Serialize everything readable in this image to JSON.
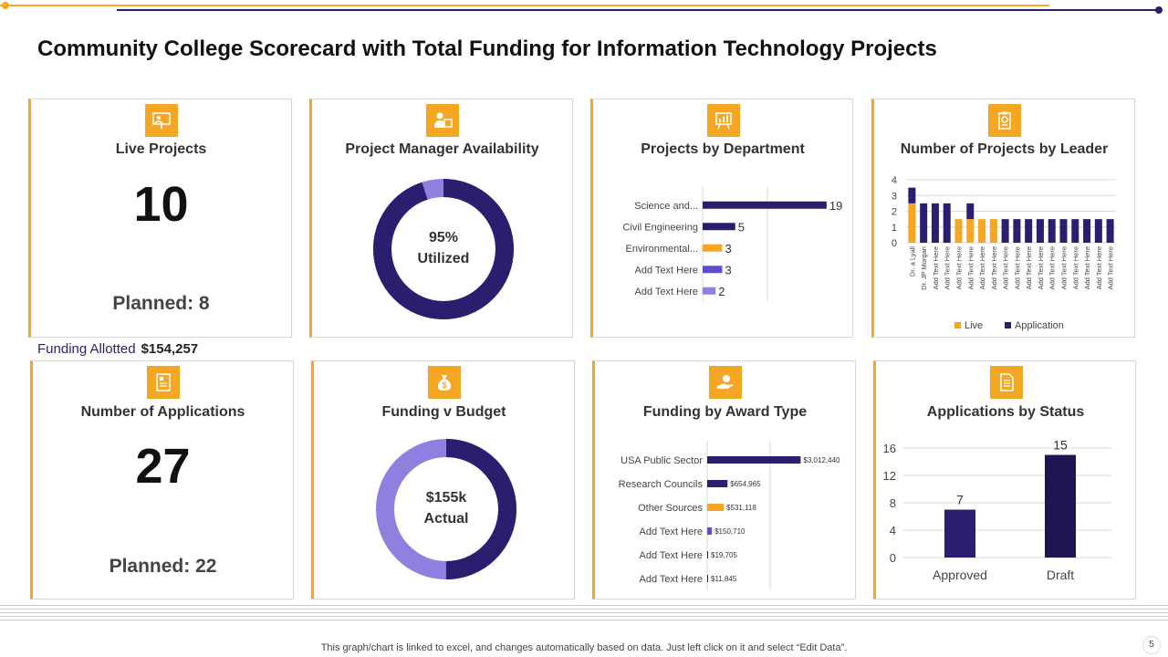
{
  "title": "Community College Scorecard with Total Funding for Information Technology Projects",
  "funding_allotted": {
    "label": "Funding Allotted",
    "value": "$154,257"
  },
  "live_projects": {
    "title": "Live Projects",
    "value": "10",
    "planned": "Planned: 8"
  },
  "applications": {
    "title": "Number of Applications",
    "value": "27",
    "planned": "Planned: 22"
  },
  "pm_availability": {
    "title": "Project Manager Availability",
    "line1": "95%",
    "line2": "Utilized",
    "percent": 95
  },
  "funding_budget": {
    "title": "Funding v Budget",
    "line1": "$155k",
    "line2": "Actual",
    "percent": 50
  },
  "footer": "This graph/chart is linked to excel,  and changes automatically based on data. Just left click on it and select “Edit Data”.",
  "page_number": "5",
  "colors": {
    "orange": "#f5a623",
    "navy": "#2a1f6e",
    "purple": "#5b4fcf",
    "lavender": "#8f80e0"
  },
  "chart_data": [
    {
      "id": "dept",
      "type": "bar",
      "orientation": "horizontal",
      "title": "Projects  by Department",
      "categories": [
        "Science and...",
        "Civil Engineering",
        "Environmental...",
        "Add Text Here",
        "Add Text Here"
      ],
      "values": [
        19,
        5,
        3,
        3,
        2
      ],
      "labels": [
        "19",
        "5",
        "3",
        "3",
        "2"
      ],
      "bar_colors": [
        "#2a1f6e",
        "#2a1f6e",
        "#f5a623",
        "#5b4fcf",
        "#8f80e0"
      ],
      "xlim": [
        0,
        20
      ]
    },
    {
      "id": "leader",
      "type": "bar",
      "stacked": true,
      "title": "Number of Projects  by Leader",
      "categories": [
        "Dr. a Lyall",
        "Dr. JP Morgan",
        "Add Text Here",
        "Add Text Here",
        "Add Text Here",
        "Add Text Here",
        "Add Text Here",
        "Add Text Here",
        "Add Text Here",
        "Add Text Here",
        "Add Text Here",
        "Add Text Here",
        "Add Text Here",
        "Add Text Here",
        "Add Text Here",
        "Add Text Here",
        "Add Text Here",
        "Add Text Here"
      ],
      "series": [
        {
          "name": "Live",
          "color": "#f5a623",
          "values": [
            2.5,
            0,
            0,
            0,
            1.5,
            1.5,
            1.5,
            1.5,
            0,
            0,
            0,
            0,
            0,
            0,
            0,
            0,
            0,
            0
          ]
        },
        {
          "name": "Application",
          "color": "#2a1f6e",
          "values": [
            1,
            2.5,
            2.5,
            2.5,
            0,
            1,
            0,
            0,
            1.5,
            1.5,
            1.5,
            1.5,
            1.5,
            1.5,
            1.5,
            1.5,
            1.5,
            1.5
          ]
        }
      ],
      "yticks": [
        "0",
        "1",
        "2",
        "3",
        "4"
      ],
      "ylim": [
        0,
        4
      ],
      "legend": "bottom"
    },
    {
      "id": "award",
      "type": "bar",
      "orientation": "horizontal",
      "title": "Funding by Award Type",
      "categories": [
        "USA Public Sector",
        "Research Councils",
        "Other Sources",
        "Add Text Here",
        "Add Text Here",
        "Add Text Here"
      ],
      "values": [
        3012440,
        654965,
        531118,
        150710,
        19705,
        11845
      ],
      "labels": [
        "$3,012,440",
        "$654,965",
        "$531,118",
        "$150,710",
        "$19,705",
        "$11,845"
      ],
      "bar_colors": [
        "#2a1f6e",
        "#2a1f6e",
        "#f5a623",
        "#5b4fcf",
        "#2a1f6e",
        "#2a1f6e"
      ],
      "xlim": [
        0,
        5000000
      ]
    },
    {
      "id": "status",
      "type": "bar",
      "title": "Applications by Status",
      "categories": [
        "Approved",
        "Draft"
      ],
      "values": [
        7,
        15
      ],
      "labels": [
        "7",
        "15"
      ],
      "yticks": [
        "0",
        "4",
        "8",
        "12",
        "16"
      ],
      "ylim": [
        0,
        16
      ]
    }
  ]
}
